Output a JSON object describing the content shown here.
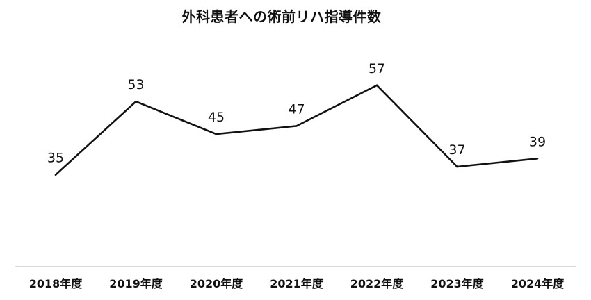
{
  "chart_data": {
    "type": "line",
    "title": "外科患者への術前リハ指導件数",
    "categories": [
      "2018年度",
      "2019年度",
      "2020年度",
      "2021年度",
      "2022年度",
      "2023年度",
      "2024年度"
    ],
    "values": [
      35,
      53,
      45,
      47,
      57,
      37,
      39
    ],
    "data_labels": [
      "35",
      "53",
      "45",
      "47",
      "57",
      "37",
      "39"
    ],
    "xlabel": "",
    "ylabel": "",
    "ylim": [
      0,
      100
    ],
    "grid": false,
    "legend": "none",
    "colors": {
      "line": "#111111",
      "axis": "#b0b0b0",
      "text": "#111111"
    }
  }
}
